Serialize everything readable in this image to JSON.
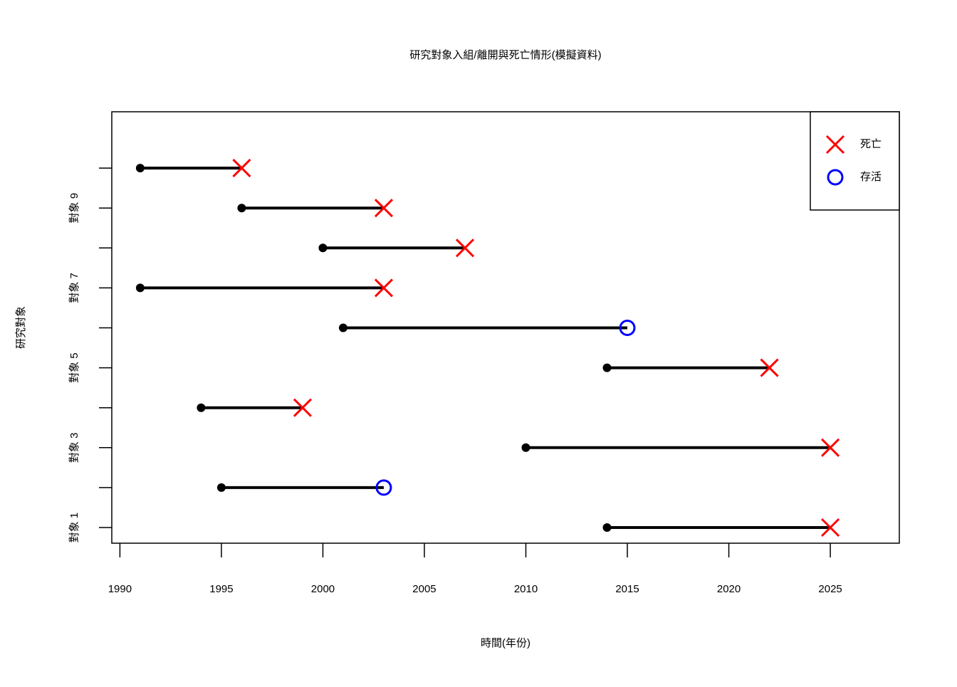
{
  "chart_data": {
    "type": "timeline",
    "title": "研究對象入組/離開與死亡情形(模擬資料)",
    "xlabel": "時間(年份)",
    "ylabel": "研究對象",
    "categories": [
      "對象 1",
      null,
      "對象 3",
      null,
      "對象 5",
      null,
      "對象 7",
      null,
      "對象 9",
      null
    ],
    "start": [
      2014,
      1995,
      2010,
      1994,
      2014,
      2001,
      1991,
      2000,
      1996,
      1991
    ],
    "series": [
      {
        "name": "死亡",
        "color": "#ff0000",
        "marker": "x",
        "values": [
          2025,
          null,
          2025,
          1999,
          2022,
          null,
          2003,
          2007,
          2003,
          1996
        ]
      },
      {
        "name": "存活",
        "color": "#0000ff",
        "marker": "circle",
        "values": [
          null,
          2003,
          null,
          null,
          null,
          2015,
          null,
          null,
          null,
          null
        ]
      }
    ],
    "start_color": "#000000",
    "xlim": [
      1989.6,
      2028.4
    ],
    "xticks": [
      1990,
      1995,
      2000,
      2005,
      2010,
      2015,
      2020,
      2025
    ],
    "legend": "top-right"
  }
}
